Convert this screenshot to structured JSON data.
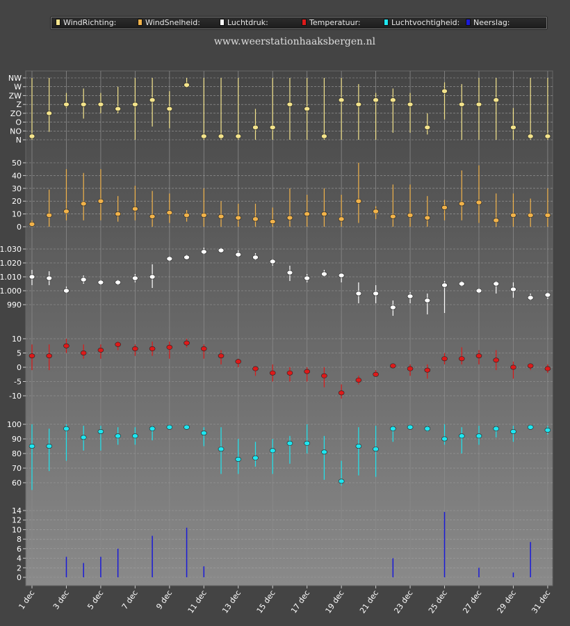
{
  "site_title": "www.weerstationhaaksbergen.nl",
  "legend": [
    {
      "label": "WindRichting:",
      "color": "#f4e48c"
    },
    {
      "label": "WindSnelheid:",
      "color": "#f2b34a"
    },
    {
      "label": "Luchtdruk:",
      "color": "#ffffff"
    },
    {
      "label": "Temperatuur:",
      "color": "#dd1a1a"
    },
    {
      "label": "Luchtvochtigheid:",
      "color": "#1ee6f0"
    },
    {
      "label": "Neerslag:",
      "color": "#1a1ad8"
    }
  ],
  "chart_data": {
    "type": "multi-panel",
    "x_labels": [
      "1 dec",
      "3 dec",
      "5 dec",
      "7 dec",
      "9 dec",
      "11 dec",
      "13 dec",
      "15 dec",
      "17 dec",
      "19 dec",
      "21 dec",
      "23 dec",
      "25 dec",
      "27 dec",
      "29 dec",
      "31 dec"
    ],
    "days": [
      1,
      2,
      3,
      4,
      5,
      6,
      7,
      8,
      9,
      10,
      11,
      12,
      13,
      14,
      15,
      16,
      17,
      18,
      19,
      20,
      21,
      22,
      23,
      24,
      25,
      26,
      27,
      28,
      29,
      30,
      31
    ],
    "panels": [
      {
        "name": "WindRichting",
        "type": "scatter-range",
        "color": "#f4e48c",
        "ylim": [
          0,
          7
        ],
        "y_ticks": [
          "N",
          "NO",
          "O",
          "ZO",
          "Z",
          "ZW",
          "W",
          "NW"
        ],
        "avg": [
          0.4,
          3.0,
          4.0,
          4.0,
          4.0,
          3.5,
          4.0,
          4.5,
          3.5,
          6.2,
          0.4,
          0.4,
          0.4,
          1.4,
          1.4,
          4.0,
          3.5,
          0.4,
          4.5,
          4.0,
          4.5,
          4.5,
          4.0,
          1.4,
          5.5,
          4.0,
          4.0,
          4.5,
          1.4,
          0.4,
          0.4
        ],
        "low": [
          0.0,
          0.9,
          3.6,
          2.4,
          3.0,
          3.0,
          0.0,
          1.5,
          1.3,
          5.9,
          0.0,
          0.0,
          0.0,
          0.0,
          0.0,
          0.0,
          0.0,
          0.0,
          0.0,
          0.0,
          0.0,
          0.8,
          0.8,
          0.6,
          2.3,
          0.0,
          0.0,
          0.0,
          0.0,
          0.0,
          0.0
        ],
        "high": [
          7.0,
          7.0,
          5.3,
          5.8,
          5.3,
          6.0,
          7.0,
          7.0,
          5.5,
          7.0,
          7.0,
          7.0,
          7.0,
          3.5,
          7.0,
          7.0,
          7.0,
          7.0,
          7.0,
          6.3,
          5.3,
          5.8,
          5.3,
          3.0,
          6.5,
          6.3,
          7.0,
          7.0,
          3.6,
          7.0,
          7.0
        ]
      },
      {
        "name": "WindSnelheid",
        "type": "scatter-range",
        "color": "#f2b34a",
        "ylim": [
          0,
          50
        ],
        "y_ticks": [
          0,
          10,
          20,
          30,
          40,
          50
        ],
        "avg": [
          2,
          9,
          12,
          18,
          20,
          10,
          14,
          8,
          11,
          9,
          9,
          8,
          7,
          6,
          4,
          7,
          10,
          10,
          6,
          20,
          12,
          8,
          9,
          7,
          15,
          18,
          19,
          5,
          9,
          9,
          9
        ],
        "low": [
          0,
          0,
          5,
          5,
          5,
          4,
          5,
          0,
          3,
          4,
          0,
          0,
          0,
          0,
          0,
          0,
          0,
          0,
          0,
          3,
          6,
          0,
          0,
          0,
          5,
          5,
          3,
          0,
          0,
          0,
          0
        ],
        "high": [
          5,
          29,
          45,
          42,
          45,
          24,
          32,
          28,
          26,
          13,
          30,
          20,
          18,
          18,
          15,
          30,
          25,
          30,
          25,
          50,
          16,
          33,
          33,
          24,
          21,
          44,
          48,
          26,
          26,
          22,
          30
        ]
      },
      {
        "name": "Luchtdruk",
        "type": "scatter-range",
        "color": "#ffffff",
        "ylim": [
          978,
          1037
        ],
        "y_ticks": [
          990,
          1000,
          1010,
          1020,
          1030
        ],
        "avg": [
          1010,
          1009,
          1000,
          1008,
          1006,
          1006,
          1009,
          1010,
          1023,
          1024,
          1028,
          1029,
          1026,
          1024,
          1021,
          1013,
          1009,
          1012,
          1011,
          998,
          998,
          988,
          996,
          993,
          1004,
          1005,
          1000,
          1005,
          1001,
          995,
          997
        ],
        "low": [
          1004,
          1004,
          998,
          1005,
          1004,
          1004,
          1006,
          1002,
          1021,
          1023,
          1026,
          1028,
          1024,
          1022,
          1018,
          1007,
          1006,
          1010,
          1006,
          991,
          991,
          982,
          991,
          983,
          984,
          1003,
          998,
          998,
          995,
          993,
          994
        ],
        "high": [
          1015,
          1014,
          1003,
          1011,
          1008,
          1008,
          1012,
          1019,
          1025,
          1026,
          1031,
          1031,
          1029,
          1027,
          1023,
          1018,
          1012,
          1015,
          1012,
          1006,
          1004,
          993,
          999,
          998,
          1007,
          1007,
          1002,
          1007,
          1006,
          998,
          999
        ]
      },
      {
        "name": "Temperatuur",
        "type": "scatter-range",
        "color": "#dd1a1a",
        "ylim": [
          -15,
          12
        ],
        "y_ticks": [
          -10,
          -5,
          0,
          5,
          10
        ],
        "avg": [
          4,
          4,
          7.5,
          5,
          6,
          8,
          6.5,
          6.5,
          7,
          8.5,
          6.5,
          4,
          2,
          -0.5,
          -2,
          -2,
          -1.5,
          -3,
          -9,
          -4.5,
          -2.5,
          0.5,
          -0.5,
          -1,
          3,
          3,
          4,
          2.5,
          0,
          0.5,
          -0.5
        ],
        "low": [
          -1,
          -1,
          5,
          3,
          3,
          6,
          4,
          4,
          3,
          7,
          3,
          1,
          0,
          -3,
          -5,
          -5,
          -5,
          -7,
          -11,
          -6,
          -3,
          0,
          -3,
          -4,
          1,
          1,
          1,
          -1,
          -4,
          -1,
          -2
        ],
        "high": [
          8,
          8,
          10,
          8,
          8,
          9,
          8,
          9,
          9,
          10,
          8,
          6,
          3,
          0,
          1,
          0,
          0,
          0,
          -6,
          -3,
          -1,
          1,
          1,
          1,
          5,
          7,
          6,
          6,
          2,
          1,
          1
        ]
      },
      {
        "name": "Luchtvochtigheid",
        "type": "scatter-range",
        "color": "#1ee6f0",
        "ylim": [
          47,
          103
        ],
        "y_ticks": [
          60,
          70,
          80,
          90,
          100
        ],
        "avg": [
          85,
          85,
          97,
          91,
          95,
          92,
          92,
          97,
          98,
          98,
          94,
          83,
          76,
          77,
          82,
          87,
          87,
          81,
          61,
          85,
          83,
          97,
          98,
          97,
          90,
          92,
          92,
          97,
          95,
          98,
          96
        ],
        "low": [
          55,
          68,
          75,
          82,
          82,
          86,
          86,
          89,
          97,
          97,
          85,
          66,
          66,
          71,
          66,
          73,
          80,
          62,
          58,
          65,
          64,
          88,
          97,
          95,
          86,
          80,
          86,
          91,
          88,
          97,
          93
        ],
        "high": [
          100,
          97,
          100,
          99,
          99,
          98,
          98,
          99,
          99,
          99,
          98,
          98,
          90,
          88,
          90,
          92,
          100,
          92,
          75,
          98,
          99,
          99,
          99,
          99,
          100,
          98,
          99,
          99,
          99,
          99,
          99
        ]
      },
      {
        "name": "Neerslag",
        "type": "bar",
        "color": "#1a1ad8",
        "ylim": [
          0,
          15
        ],
        "y_ticks": [
          0,
          2,
          4,
          6,
          8,
          10,
          12,
          14
        ],
        "values": [
          0,
          0,
          4.3,
          3.0,
          4.3,
          6.0,
          0,
          8.7,
          0,
          10.4,
          2.3,
          0,
          0,
          0,
          0,
          0,
          0,
          0,
          0,
          0,
          0,
          4.0,
          0,
          0,
          13.7,
          0,
          2.0,
          0,
          1.0,
          7.4,
          0
        ]
      }
    ]
  }
}
